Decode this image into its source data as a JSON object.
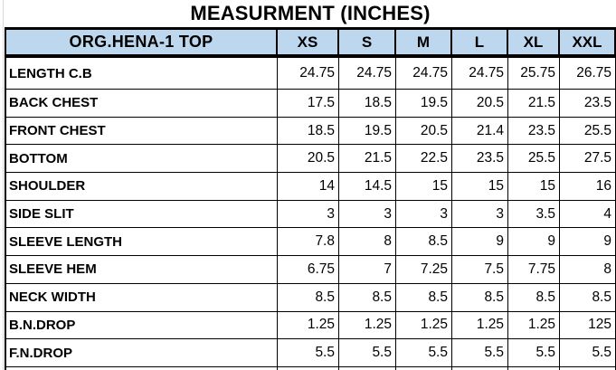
{
  "title": "MEASURMENT (INCHES)",
  "table": {
    "label_header": "ORG.HENA-1 TOP",
    "size_columns": [
      "XS",
      "S",
      "M",
      "L",
      "XL",
      "XXL"
    ],
    "rows": [
      {
        "label": "LENGTH C.B",
        "values": [
          "24.75",
          "24.75",
          "24.75",
          "24.75",
          "25.75",
          "26.75"
        ]
      },
      {
        "label": "BACK CHEST",
        "values": [
          "17.5",
          "18.5",
          "19.5",
          "20.5",
          "21.5",
          "23.5"
        ]
      },
      {
        "label": "FRONT CHEST",
        "values": [
          "18.5",
          "19.5",
          "20.5",
          "21.4",
          "23.5",
          "25.5"
        ]
      },
      {
        "label": "BOTTOM",
        "values": [
          "20.5",
          "21.5",
          "22.5",
          "23.5",
          "25.5",
          "27.5"
        ]
      },
      {
        "label": "SHOULDER",
        "values": [
          "14",
          "14.5",
          "15",
          "15",
          "15",
          "16"
        ]
      },
      {
        "label": "SIDE SLIT",
        "values": [
          "3",
          "3",
          "3",
          "3",
          "3.5",
          "4"
        ]
      },
      {
        "label": "SLEEVE LENGTH",
        "values": [
          "7.8",
          "8",
          "8.5",
          "9",
          "9",
          "9"
        ]
      },
      {
        "label": "SLEEVE HEM",
        "values": [
          "6.75",
          "7",
          "7.25",
          "7.5",
          "7.75",
          "8"
        ]
      },
      {
        "label": "NECK WIDTH",
        "values": [
          "8.5",
          "8.5",
          "8.5",
          "8.5",
          "8.5",
          "8.5"
        ]
      },
      {
        "label": "B.N.DROP",
        "values": [
          "1.25",
          "1.25",
          "1.25",
          "1.25",
          "1.25",
          "125"
        ]
      },
      {
        "label": "F.N.DROP",
        "values": [
          "5.5",
          "5.5",
          "5.5",
          "5.5",
          "5.5",
          "5.5"
        ]
      }
    ]
  },
  "colors": {
    "header_bg": "#BDD7EE",
    "border": "#000000",
    "gridline": "#D9D9D9"
  }
}
